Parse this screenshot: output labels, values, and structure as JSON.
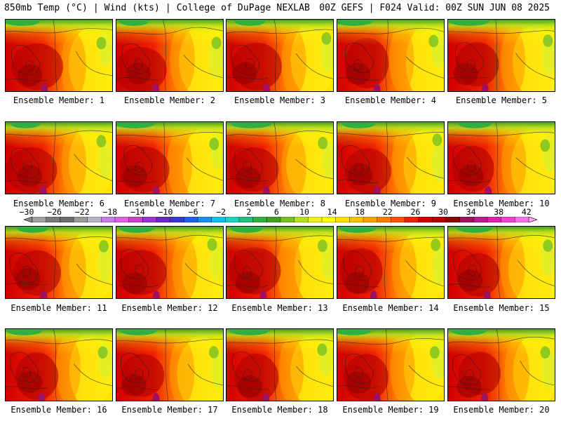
{
  "header": {
    "left": "850mb Temp (°C) | Wind (kts) | College of DuPage NEXLAB",
    "right": "00Z GEFS | F024 Valid: 00Z SUN JUN 08 2025"
  },
  "members": [
    "Ensemble Member: 1",
    "Ensemble Member: 2",
    "Ensemble Member: 3",
    "Ensemble Member: 4",
    "Ensemble Member: 5",
    "Ensemble Member: 6",
    "Ensemble Member: 7",
    "Ensemble Member: 8",
    "Ensemble Member: 9",
    "Ensemble Member: 10",
    "Ensemble Member: 11",
    "Ensemble Member: 12",
    "Ensemble Member: 13",
    "Ensemble Member: 14",
    "Ensemble Member: 15",
    "Ensemble Member: 16",
    "Ensemble Member: 17",
    "Ensemble Member: 18",
    "Ensemble Member: 19",
    "Ensemble Member: 20"
  ],
  "colorbar": {
    "labels": [
      "−30",
      "−26",
      "−22",
      "−18",
      "−14",
      "−10",
      "−6",
      "−2",
      "2",
      "6",
      "10",
      "14",
      "18",
      "22",
      "26",
      "30",
      "34",
      "38",
      "42"
    ],
    "colors": [
      "#8c8c8c",
      "#a0a0a0",
      "#7a7a7a",
      "#6c6c6c",
      "#9a9a9a",
      "#b4b4c8",
      "#c87ce8",
      "#e05ee8",
      "#d040d0",
      "#9b30d8",
      "#6a28c8",
      "#3838d0",
      "#2060e8",
      "#1890f0",
      "#10c0f0",
      "#20d0c0",
      "#20c080",
      "#30b040",
      "#40a020",
      "#78c020",
      "#b8e020",
      "#e8f020",
      "#ffff00",
      "#ffe000",
      "#ffc000",
      "#ffa000",
      "#ff7a00",
      "#ff5000",
      "#f02000",
      "#d00000",
      "#b00000",
      "#900000",
      "#a01060",
      "#c01890",
      "#e020b0",
      "#f040d0",
      "#ff70e8",
      "#ffa8f4"
    ]
  }
}
